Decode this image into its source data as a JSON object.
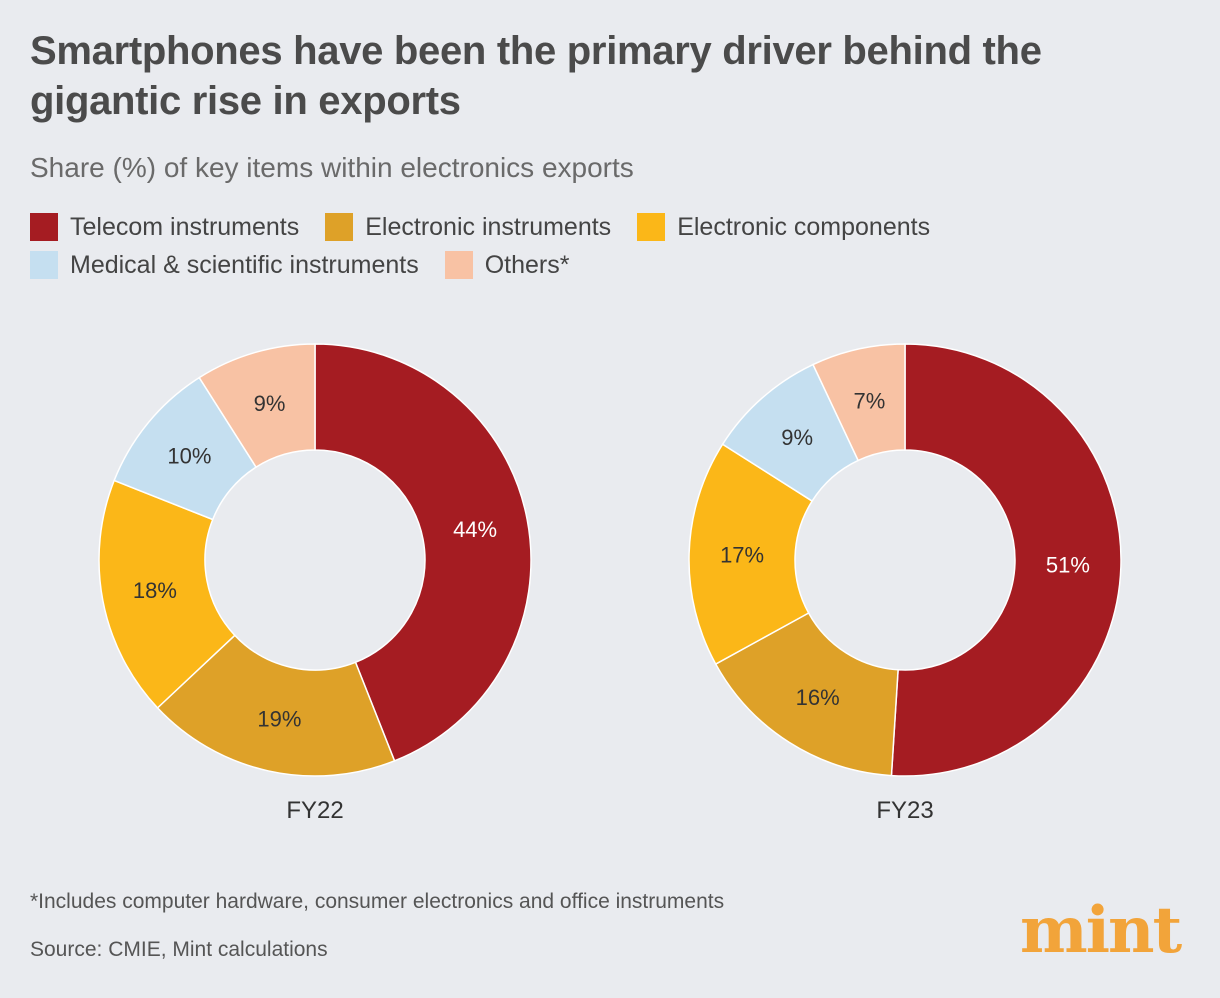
{
  "header": {
    "title": "Smartphones have been the primary driver behind the gigantic rise in exports",
    "subtitle": "Share (%) of key items within electronics exports"
  },
  "legend": [
    {
      "label": "Telecom instruments",
      "color": "#a51c22"
    },
    {
      "label": "Electronic instruments",
      "color": "#dea128"
    },
    {
      "label": "Electronic components",
      "color": "#fbb718"
    },
    {
      "label": "Medical & scientific instruments",
      "color": "#c5dff0"
    },
    {
      "label": "Others*",
      "color": "#f8c2a4"
    }
  ],
  "chart_data": [
    {
      "type": "pie",
      "donut": true,
      "title": "FY22",
      "unit": "%",
      "categories": [
        "Telecom instruments",
        "Electronic instruments",
        "Electronic components",
        "Medical & scientific instruments",
        "Others*"
      ],
      "values": [
        44,
        19,
        18,
        10,
        9
      ],
      "labels": [
        "44%",
        "19%",
        "18%",
        "10%",
        "9%"
      ],
      "colors": [
        "#a51c22",
        "#dea128",
        "#fbb718",
        "#c5dff0",
        "#f8c2a4"
      ]
    },
    {
      "type": "pie",
      "donut": true,
      "title": "FY23",
      "unit": "%",
      "categories": [
        "Telecom instruments",
        "Electronic instruments",
        "Electronic components",
        "Medical & scientific instruments",
        "Others*"
      ],
      "values": [
        51,
        16,
        17,
        9,
        7
      ],
      "labels": [
        "51%",
        "16%",
        "17%",
        "9%",
        "7%"
      ],
      "colors": [
        "#a51c22",
        "#dea128",
        "#fbb718",
        "#c5dff0",
        "#f8c2a4"
      ]
    }
  ],
  "footer": {
    "note": "*Includes computer hardware, consumer electronics and office instruments",
    "source": "Source: CMIE, Mint calculations",
    "logo": "mint"
  }
}
